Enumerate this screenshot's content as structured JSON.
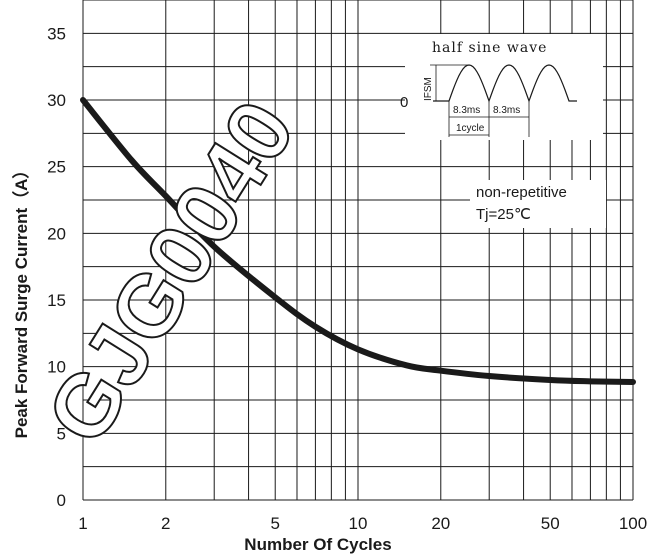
{
  "chart_data": {
    "type": "line",
    "xscale": "log",
    "xlim": [
      1,
      100
    ],
    "ylim": [
      0,
      37.5
    ],
    "xticks": [
      1,
      2,
      5,
      10,
      20,
      50,
      100
    ],
    "yticks": [
      0,
      5,
      10,
      15,
      20,
      25,
      30,
      35
    ],
    "grid": true,
    "xlabel": "Number Of Cycles",
    "ylabel": "Peak Forward Surge Current（A）",
    "series": [
      {
        "x": [
          1,
          1.5,
          2,
          3,
          5,
          7,
          10,
          15,
          20,
          30,
          50,
          70,
          100
        ],
        "y": [
          30,
          25.5,
          22.8,
          19.0,
          15.2,
          13.0,
          11.3,
          10.1,
          9.7,
          9.3,
          9.0,
          8.9,
          8.85
        ]
      }
    ],
    "annotations": {
      "condition_1": "non-repetitive",
      "condition_2": "Tj=25℃",
      "inset_title": "half sine wave",
      "inset_ifsm": "IFSM",
      "inset_zero": "0",
      "inset_period_a": "8.3ms",
      "inset_period_b": "8.3ms",
      "inset_cycle": "1cycle"
    },
    "watermark": "GJG0040",
    "colors": {
      "line": "#1a1a1a",
      "grid": "#1a1a1a",
      "background": "#ffffff"
    }
  }
}
